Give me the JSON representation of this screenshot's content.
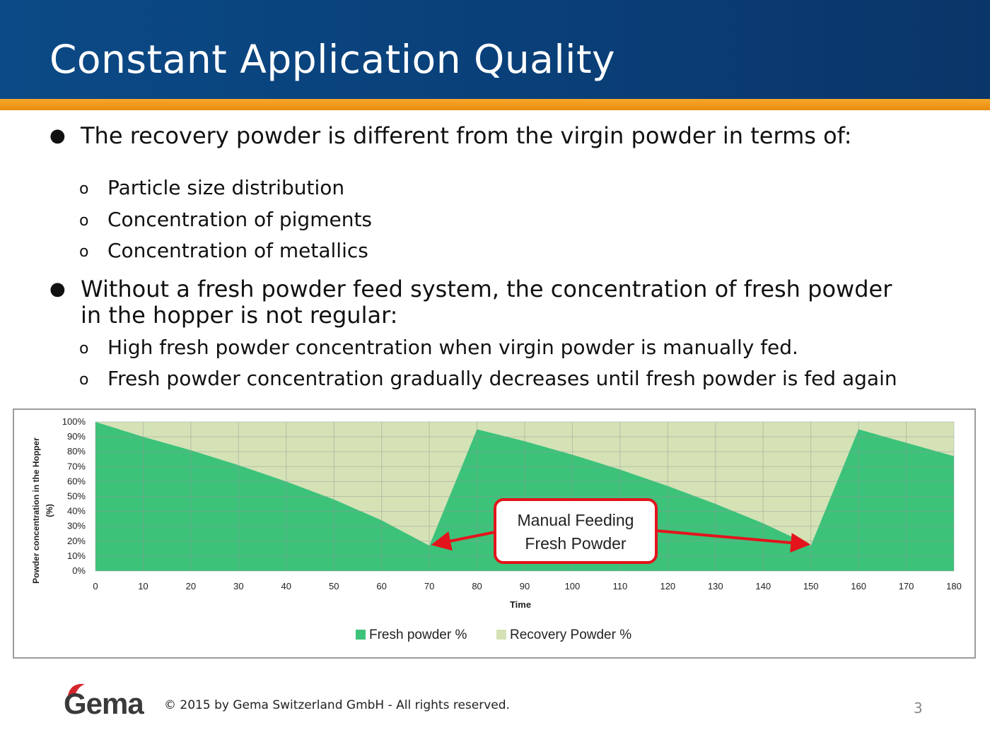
{
  "slide": {
    "title": "Constant Application Quality",
    "bullets": [
      {
        "text": "The recovery powder is different from the virgin powder in terms of:",
        "sub": [
          "Particle size distribution",
          "Concentration of pigments",
          "Concentration of metallics"
        ]
      },
      {
        "text_line1": "Without a fresh powder feed system, the concentration of fresh powder",
        "text_line2": "in the hopper is not regular:",
        "sub": [
          "High fresh powder concentration when virgin powder is manually fed.",
          "Fresh powder concentration gradually decreases until fresh powder is fed again"
        ]
      }
    ],
    "bullet_symbol": "●",
    "sub_bullet_symbol": "o",
    "footer": {
      "logo_text": "Gema",
      "copyright": "© 2015 by Gema Switzerland GmbH - All rights reserved.",
      "page_number": "3"
    },
    "colors": {
      "header_blue": "#0a3f78",
      "stripe_orange": "#ee951a",
      "fresh": "#3dc27a",
      "recovery": "#d4e2b5",
      "callout_red": "#e3141c"
    }
  },
  "chart_data": {
    "type": "area",
    "stacked": true,
    "title": "",
    "xlabel": "Time",
    "ylabel": "Powder concentration in the Hopper (%)",
    "x": [
      0,
      10,
      20,
      30,
      40,
      50,
      60,
      70,
      80,
      90,
      100,
      110,
      120,
      130,
      140,
      150,
      160,
      170,
      180
    ],
    "series": [
      {
        "name": "Fresh powder %",
        "color": "#3dc27a",
        "values": [
          100,
          90,
          81,
          71,
          60,
          48,
          34,
          17,
          95,
          87,
          78,
          68,
          57,
          45,
          32,
          17,
          95,
          86,
          77
        ]
      },
      {
        "name": "Recovery Powder %",
        "color": "#d4e2b5",
        "values": [
          0,
          10,
          19,
          29,
          40,
          52,
          66,
          83,
          5,
          13,
          22,
          32,
          43,
          55,
          68,
          83,
          5,
          14,
          23
        ]
      }
    ],
    "xlim": [
      0,
      180
    ],
    "ylim": [
      0,
      100
    ],
    "x_ticks": [
      "0",
      "10",
      "20",
      "30",
      "40",
      "50",
      "60",
      "70",
      "80",
      "90",
      "100",
      "110",
      "120",
      "130",
      "140",
      "150",
      "160",
      "170",
      "180"
    ],
    "y_ticks": [
      "0%",
      "10%",
      "20%",
      "30%",
      "40%",
      "50%",
      "60%",
      "70%",
      "80%",
      "90%",
      "100%"
    ],
    "grid": true,
    "legend_position": "bottom",
    "annotation": {
      "line1": "Manual Feeding",
      "line2": "Fresh Powder",
      "points_to_x": [
        70,
        150
      ]
    }
  }
}
